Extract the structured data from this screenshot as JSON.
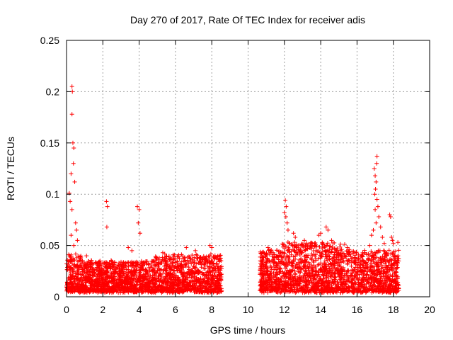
{
  "chart_data": {
    "type": "scatter",
    "title": "Day 270 of 2017, Rate Of TEC Index for receiver adis",
    "xlabel": "GPS time / hours",
    "ylabel": "ROTI / TECUs",
    "xlim": [
      0,
      20
    ],
    "ylim": [
      0,
      0.25
    ],
    "xticks": [
      "0",
      "2",
      "4",
      "6",
      "8",
      "10",
      "12",
      "14",
      "16",
      "18",
      "20"
    ],
    "yticks": [
      "0",
      "0.05",
      "0.1",
      "0.15",
      "0.2",
      "0.25"
    ],
    "grid": true,
    "marker": "+",
    "series": [
      {
        "name": "ROTI",
        "color": "#ff0000",
        "data_gap": [
          8.6,
          10.6
        ],
        "segments": [
          {
            "x_start": 0.0,
            "x_end": 8.55,
            "typical_min": 0.005,
            "typical_max": 0.035
          },
          {
            "x_start": 10.65,
            "x_end": 18.3,
            "typical_min": 0.005,
            "typical_max": 0.045
          }
        ],
        "points": [
          {
            "x": 0.3,
            "y": 0.205
          },
          {
            "x": 0.32,
            "y": 0.2
          },
          {
            "x": 0.3,
            "y": 0.178
          },
          {
            "x": 0.35,
            "y": 0.15
          },
          {
            "x": 0.4,
            "y": 0.145
          },
          {
            "x": 0.38,
            "y": 0.13
          },
          {
            "x": 0.25,
            "y": 0.12
          },
          {
            "x": 0.45,
            "y": 0.112
          },
          {
            "x": 0.15,
            "y": 0.101
          },
          {
            "x": 0.2,
            "y": 0.093
          },
          {
            "x": 0.3,
            "y": 0.085
          },
          {
            "x": 0.5,
            "y": 0.072
          },
          {
            "x": 0.55,
            "y": 0.065
          },
          {
            "x": 0.25,
            "y": 0.06
          },
          {
            "x": 0.6,
            "y": 0.055
          },
          {
            "x": 0.4,
            "y": 0.05
          },
          {
            "x": 1.1,
            "y": 0.04
          },
          {
            "x": 2.2,
            "y": 0.093
          },
          {
            "x": 2.25,
            "y": 0.088
          },
          {
            "x": 2.22,
            "y": 0.068
          },
          {
            "x": 3.9,
            "y": 0.088
          },
          {
            "x": 4.0,
            "y": 0.085
          },
          {
            "x": 3.95,
            "y": 0.072
          },
          {
            "x": 4.05,
            "y": 0.062
          },
          {
            "x": 3.4,
            "y": 0.048
          },
          {
            "x": 3.6,
            "y": 0.045
          },
          {
            "x": 5.3,
            "y": 0.043
          },
          {
            "x": 6.6,
            "y": 0.048
          },
          {
            "x": 7.1,
            "y": 0.045
          },
          {
            "x": 7.9,
            "y": 0.05
          },
          {
            "x": 8.0,
            "y": 0.048
          },
          {
            "x": 11.1,
            "y": 0.048
          },
          {
            "x": 11.15,
            "y": 0.046
          },
          {
            "x": 12.05,
            "y": 0.094
          },
          {
            "x": 12.1,
            "y": 0.088
          },
          {
            "x": 12.0,
            "y": 0.082
          },
          {
            "x": 12.08,
            "y": 0.078
          },
          {
            "x": 12.15,
            "y": 0.072
          },
          {
            "x": 12.2,
            "y": 0.065
          },
          {
            "x": 12.5,
            "y": 0.062
          },
          {
            "x": 12.6,
            "y": 0.058
          },
          {
            "x": 13.1,
            "y": 0.055
          },
          {
            "x": 13.5,
            "y": 0.05
          },
          {
            "x": 13.9,
            "y": 0.06
          },
          {
            "x": 14.0,
            "y": 0.062
          },
          {
            "x": 14.3,
            "y": 0.068
          },
          {
            "x": 14.4,
            "y": 0.065
          },
          {
            "x": 14.6,
            "y": 0.055
          },
          {
            "x": 16.95,
            "y": 0.125
          },
          {
            "x": 17.0,
            "y": 0.118
          },
          {
            "x": 17.05,
            "y": 0.112
          },
          {
            "x": 17.1,
            "y": 0.137
          },
          {
            "x": 17.08,
            "y": 0.13
          },
          {
            "x": 17.02,
            "y": 0.105
          },
          {
            "x": 16.98,
            "y": 0.1
          },
          {
            "x": 17.1,
            "y": 0.095
          },
          {
            "x": 17.15,
            "y": 0.088
          },
          {
            "x": 17.0,
            "y": 0.085
          },
          {
            "x": 17.2,
            "y": 0.078
          },
          {
            "x": 17.05,
            "y": 0.072
          },
          {
            "x": 17.3,
            "y": 0.068
          },
          {
            "x": 16.9,
            "y": 0.065
          },
          {
            "x": 16.8,
            "y": 0.06
          },
          {
            "x": 17.4,
            "y": 0.058
          },
          {
            "x": 17.5,
            "y": 0.052
          },
          {
            "x": 16.7,
            "y": 0.05
          },
          {
            "x": 17.8,
            "y": 0.08
          },
          {
            "x": 17.85,
            "y": 0.078
          },
          {
            "x": 17.9,
            "y": 0.058
          },
          {
            "x": 17.95,
            "y": 0.055
          },
          {
            "x": 18.0,
            "y": 0.052
          },
          {
            "x": 18.25,
            "y": 0.053
          }
        ]
      }
    ]
  }
}
